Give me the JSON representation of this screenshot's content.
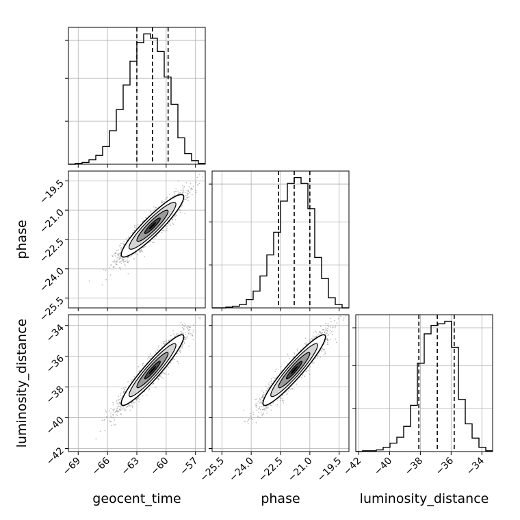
{
  "chart_data": {
    "type": "corner",
    "grid": true,
    "parameters": [
      "geocent_time",
      "phase",
      "luminosity_distance"
    ],
    "axis_labels": {
      "x": [
        "geocent_time",
        "phase",
        "luminosity_distance"
      ],
      "y": [
        "phase",
        "luminosity_distance"
      ]
    },
    "ranges": {
      "geocent_time": [
        -70.0,
        -56.0
      ],
      "phase": [
        -26.0,
        -19.0
      ],
      "luminosity_distance": [
        -42.2,
        -33.3
      ]
    },
    "ticks": {
      "geocent_time": [
        -69,
        -66,
        -63,
        -60,
        -57
      ],
      "phase": [
        -25.5,
        -24.0,
        -22.5,
        -21.0,
        -19.5
      ],
      "luminosity_distance": [
        -42,
        -40,
        -38,
        -36,
        -34
      ]
    },
    "tick_labels": {
      "geocent_time": [
        "−69",
        "−66",
        "−63",
        "−60",
        "−57"
      ],
      "phase": [
        "−25.5",
        "−24.0",
        "−22.5",
        "−21.0",
        "−19.5"
      ],
      "luminosity_distance": [
        "−42",
        "−40",
        "−38",
        "−36",
        "−34"
      ]
    },
    "quantiles": {
      "geocent_time": [
        -63.0,
        -61.4,
        -59.8
      ],
      "phase": [
        -22.6,
        -21.8,
        -21.0
      ],
      "luminosity_distance": [
        -38.1,
        -36.9,
        -35.8
      ]
    },
    "histograms": {
      "geocent_time": {
        "edges": [
          -70.0,
          -69.3,
          -68.6,
          -67.9,
          -67.2,
          -66.5,
          -65.8,
          -65.1,
          -64.4,
          -63.7,
          -63.0,
          -62.3,
          -61.6,
          -60.9,
          -60.2,
          -59.5,
          -58.8,
          -58.1,
          -57.4,
          -56.7,
          -56.0
        ],
        "counts": [
          0,
          1,
          2,
          5,
          10,
          20,
          38,
          62,
          90,
          117,
          138,
          148,
          143,
          128,
          99,
          68,
          30,
          12,
          4,
          1
        ]
      },
      "phase": {
        "edges": [
          -26.0,
          -25.65,
          -25.3,
          -24.95,
          -24.6,
          -24.25,
          -23.9,
          -23.55,
          -23.2,
          -22.85,
          -22.5,
          -22.15,
          -21.8,
          -21.45,
          -21.1,
          -20.75,
          -20.4,
          -20.05,
          -19.7,
          -19.35,
          -19.0
        ],
        "counts": [
          0,
          0,
          1,
          2,
          4,
          10,
          20,
          38,
          63,
          90,
          127,
          148,
          155,
          148,
          118,
          60,
          35,
          12,
          4,
          0
        ]
      },
      "luminosity_distance": {
        "edges": [
          -42.2,
          -41.755,
          -41.31,
          -40.865,
          -40.42,
          -39.975,
          -39.53,
          -39.085,
          -38.64,
          -38.195,
          -37.75,
          -37.305,
          -36.86,
          -36.415,
          -35.97,
          -35.525,
          -35.08,
          -34.635,
          -34.19,
          -33.745,
          -33.3
        ],
        "counts": [
          0,
          1,
          1,
          2,
          5,
          10,
          17,
          30,
          55,
          105,
          140,
          150,
          152,
          155,
          124,
          62,
          33,
          16,
          5,
          1
        ]
      }
    },
    "pairs": [
      {
        "x": "geocent_time",
        "y": "phase",
        "x_mean": -61.4,
        "y_mean": -21.8,
        "x_sd": 1.6,
        "y_sd": 0.8,
        "rho": 0.92
      },
      {
        "x": "geocent_time",
        "y": "luminosity_distance",
        "x_mean": -61.4,
        "y_mean": -36.9,
        "x_sd": 1.6,
        "y_sd": 1.15,
        "rho": 0.94
      },
      {
        "x": "phase",
        "y": "luminosity_distance",
        "x_mean": -21.8,
        "y_mean": -36.9,
        "x_sd": 0.8,
        "y_sd": 1.15,
        "rho": 0.94
      }
    ],
    "contour_levels_sigma": [
      0.5,
      1.0,
      1.5,
      2.0
    ]
  }
}
